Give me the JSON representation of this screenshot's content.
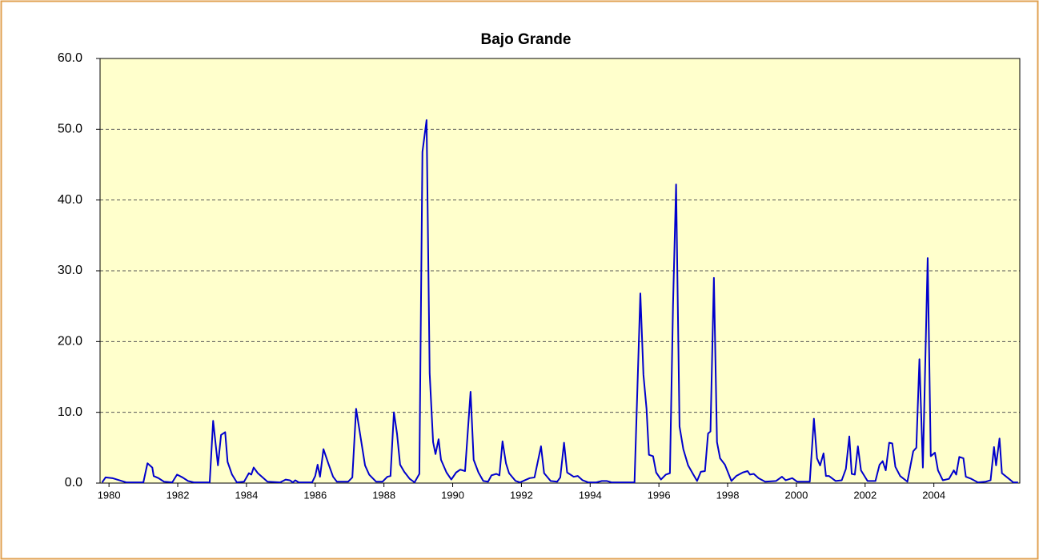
{
  "chart_data": {
    "type": "line",
    "title": "Bajo Grande",
    "x": [
      1979.8,
      1979.9,
      1980.1,
      1980.3,
      1980.5,
      1981.0,
      1981.12,
      1981.26,
      1981.3,
      1981.44,
      1981.6,
      1981.84,
      1981.98,
      1982.14,
      1982.3,
      1982.47,
      1982.93,
      1983.03,
      1983.17,
      1983.26,
      1983.38,
      1983.45,
      1983.58,
      1983.72,
      1983.93,
      1984.07,
      1984.14,
      1984.21,
      1984.33,
      1984.47,
      1984.61,
      1984.98,
      1985.14,
      1985.26,
      1985.35,
      1985.42,
      1985.52,
      1985.91,
      1986.0,
      1986.07,
      1986.14,
      1986.24,
      1986.38,
      1986.52,
      1986.63,
      1986.96,
      1987.08,
      1987.19,
      1987.31,
      1987.45,
      1987.57,
      1987.77,
      1987.96,
      1988.1,
      1988.19,
      1988.29,
      1988.38,
      1988.47,
      1988.59,
      1988.75,
      1988.89,
      1989.03,
      1989.12,
      1989.24,
      1989.33,
      1989.43,
      1989.5,
      1989.59,
      1989.66,
      1989.82,
      1989.96,
      1990.1,
      1990.22,
      1990.36,
      1990.52,
      1990.61,
      1990.75,
      1990.89,
      1991.03,
      1991.13,
      1991.27,
      1991.36,
      1991.45,
      1991.55,
      1991.64,
      1991.83,
      1991.96,
      1992.1,
      1992.24,
      1992.38,
      1992.57,
      1992.66,
      1992.85,
      1993.04,
      1993.13,
      1993.24,
      1993.33,
      1993.52,
      1993.64,
      1993.78,
      1993.94,
      1994.18,
      1994.34,
      1994.48,
      1994.62,
      1995.29,
      1995.46,
      1995.55,
      1995.64,
      1995.71,
      1995.83,
      1995.92,
      1996.06,
      1996.2,
      1996.32,
      1996.41,
      1996.5,
      1996.6,
      1996.71,
      1996.85,
      1996.99,
      1997.11,
      1997.22,
      1997.34,
      1997.43,
      1997.5,
      1997.6,
      1997.69,
      1997.78,
      1997.92,
      1998.11,
      1998.25,
      1998.44,
      1998.58,
      1998.65,
      1998.76,
      1998.9,
      1999.09,
      1999.41,
      1999.58,
      1999.69,
      1999.88,
      2000.02,
      2000.39,
      2000.51,
      2000.6,
      2000.69,
      2000.79,
      2000.86,
      2000.95,
      2001.14,
      2001.32,
      2001.44,
      2001.54,
      2001.61,
      2001.7,
      2001.79,
      2001.88,
      2002.07,
      2002.3,
      2002.42,
      2002.51,
      2002.6,
      2002.7,
      2002.79,
      2002.88,
      2003.02,
      2003.23,
      2003.4,
      2003.49,
      2003.58,
      2003.68,
      2003.82,
      2003.91,
      2004.03,
      2004.12,
      2004.26,
      2004.44,
      2004.58,
      2004.65,
      2004.74,
      2004.86,
      2004.93,
      2005.09,
      2005.28,
      2005.51,
      2005.65,
      2005.75,
      2005.81,
      2005.91,
      2005.98,
      2006.21,
      2006.31,
      2006.45
    ],
    "values": [
      0.1,
      0.8,
      0.7,
      0.4,
      0.1,
      0.1,
      2.8,
      2.2,
      1.0,
      0.7,
      0.2,
      0.1,
      1.2,
      0.8,
      0.3,
      0.1,
      0.1,
      8.8,
      2.5,
      6.8,
      7.2,
      3.0,
      1.2,
      0.1,
      0.2,
      1.4,
      1.2,
      2.2,
      1.4,
      0.8,
      0.2,
      0.1,
      0.5,
      0.4,
      0.1,
      0.4,
      0.1,
      0.1,
      1.0,
      2.6,
      0.9,
      4.8,
      2.8,
      0.9,
      0.2,
      0.2,
      0.8,
      10.5,
      6.8,
      2.5,
      1.2,
      0.2,
      0.2,
      0.9,
      1.0,
      10.0,
      7.0,
      2.6,
      1.6,
      0.6,
      0.1,
      1.3,
      46.8,
      51.3,
      15.5,
      5.8,
      4.1,
      6.2,
      3.3,
      1.5,
      0.5,
      1.5,
      1.9,
      1.7,
      12.9,
      3.3,
      1.5,
      0.3,
      0.2,
      1.1,
      1.3,
      1.1,
      5.9,
      2.8,
      1.4,
      0.3,
      0.1,
      0.4,
      0.7,
      0.8,
      5.2,
      1.4,
      0.3,
      0.2,
      0.8,
      5.7,
      1.5,
      0.9,
      1.0,
      0.4,
      0.1,
      0.1,
      0.3,
      0.3,
      0.1,
      0.1,
      26.8,
      15.3,
      10.5,
      4.0,
      3.8,
      1.5,
      0.5,
      1.2,
      1.4,
      25.0,
      42.2,
      8.0,
      4.8,
      2.5,
      1.3,
      0.3,
      1.6,
      1.7,
      7.0,
      7.3,
      29.0,
      5.8,
      3.5,
      2.6,
      0.3,
      1.0,
      1.5,
      1.7,
      1.2,
      1.3,
      0.7,
      0.2,
      0.3,
      0.9,
      0.4,
      0.7,
      0.2,
      0.2,
      9.1,
      3.5,
      2.5,
      4.2,
      1.0,
      1.0,
      0.3,
      0.4,
      2.0,
      6.6,
      1.3,
      1.2,
      5.2,
      1.8,
      0.3,
      0.3,
      2.6,
      3.1,
      1.8,
      5.7,
      5.6,
      2.3,
      1.0,
      0.2,
      4.5,
      5.0,
      17.5,
      2.2,
      31.8,
      3.8,
      4.3,
      1.8,
      0.4,
      0.6,
      1.8,
      1.2,
      3.7,
      3.5,
      0.9,
      0.6,
      0.1,
      0.2,
      0.4,
      5.1,
      2.5,
      6.3,
      1.4,
      0.5,
      0.1,
      0.1
    ],
    "color": "#0000cc",
    "xlim": [
      1979.74,
      2006.5
    ],
    "xticks": [
      1980,
      1982,
      1984,
      1986,
      1988,
      1990,
      1992,
      1994,
      1996,
      1998,
      2000,
      2002,
      2004
    ],
    "ylim": [
      0,
      60
    ],
    "yticks": [
      {
        "value": 0,
        "label": "0.0"
      },
      {
        "value": 10,
        "label": "10.0"
      },
      {
        "value": 20,
        "label": "20.0"
      },
      {
        "value": 30,
        "label": "30.0"
      },
      {
        "value": 40,
        "label": "40.0"
      },
      {
        "value": 50,
        "label": "50.0"
      },
      {
        "value": 60,
        "label": "60.0"
      }
    ],
    "grid": true,
    "plot_background": "#ffffcc"
  }
}
